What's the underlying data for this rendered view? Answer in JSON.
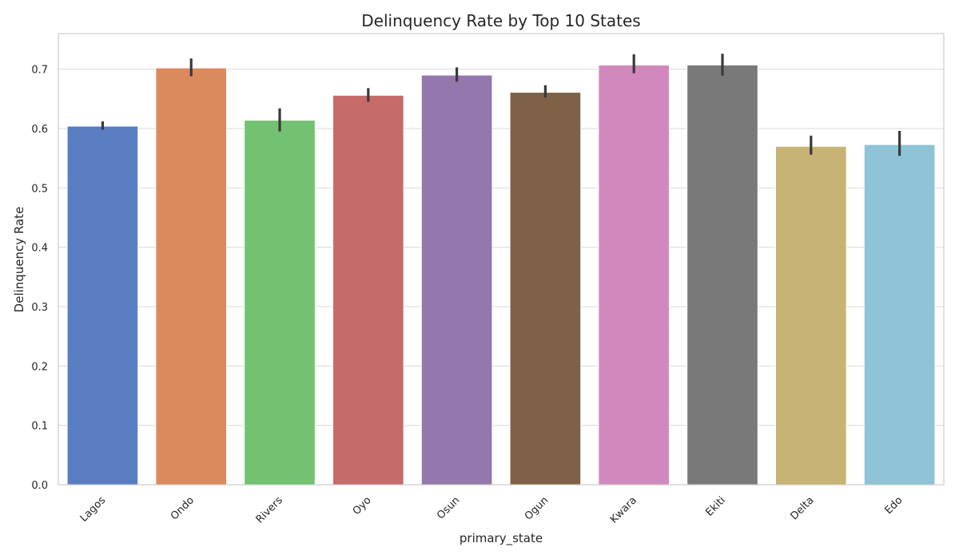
{
  "chart_data": {
    "type": "bar",
    "title": "Delinquency Rate by Top 10 States",
    "xlabel": "primary_state",
    "ylabel": "Delinquency Rate",
    "categories": [
      "Lagos",
      "Ondo",
      "Rivers",
      "Oyo",
      "Osun",
      "Ogun",
      "Kwara",
      "Ekiti",
      "Delta",
      "Edo"
    ],
    "values": [
      0.604,
      0.702,
      0.614,
      0.656,
      0.69,
      0.661,
      0.707,
      0.707,
      0.57,
      0.573
    ],
    "error_low": [
      0.598,
      0.688,
      0.595,
      0.645,
      0.679,
      0.652,
      0.693,
      0.689,
      0.556,
      0.554
    ],
    "error_high": [
      0.612,
      0.718,
      0.634,
      0.668,
      0.703,
      0.673,
      0.725,
      0.726,
      0.588,
      0.596
    ],
    "colors": [
      "#5a7ec2",
      "#db8a5e",
      "#73c271",
      "#c66b6a",
      "#9477ad",
      "#7f6147",
      "#d189bd",
      "#797979",
      "#c7b374",
      "#8fc3d8"
    ],
    "ylim": [
      0,
      0.76
    ],
    "yticks": [
      0.0,
      0.1,
      0.2,
      0.3,
      0.4,
      0.5,
      0.6,
      0.7
    ],
    "ytick_labels": [
      "0.0",
      "0.1",
      "0.2",
      "0.3",
      "0.4",
      "0.5",
      "0.6",
      "0.7"
    ],
    "grid": true,
    "legend": "none",
    "errorbar_color": "#3a3a3a"
  }
}
